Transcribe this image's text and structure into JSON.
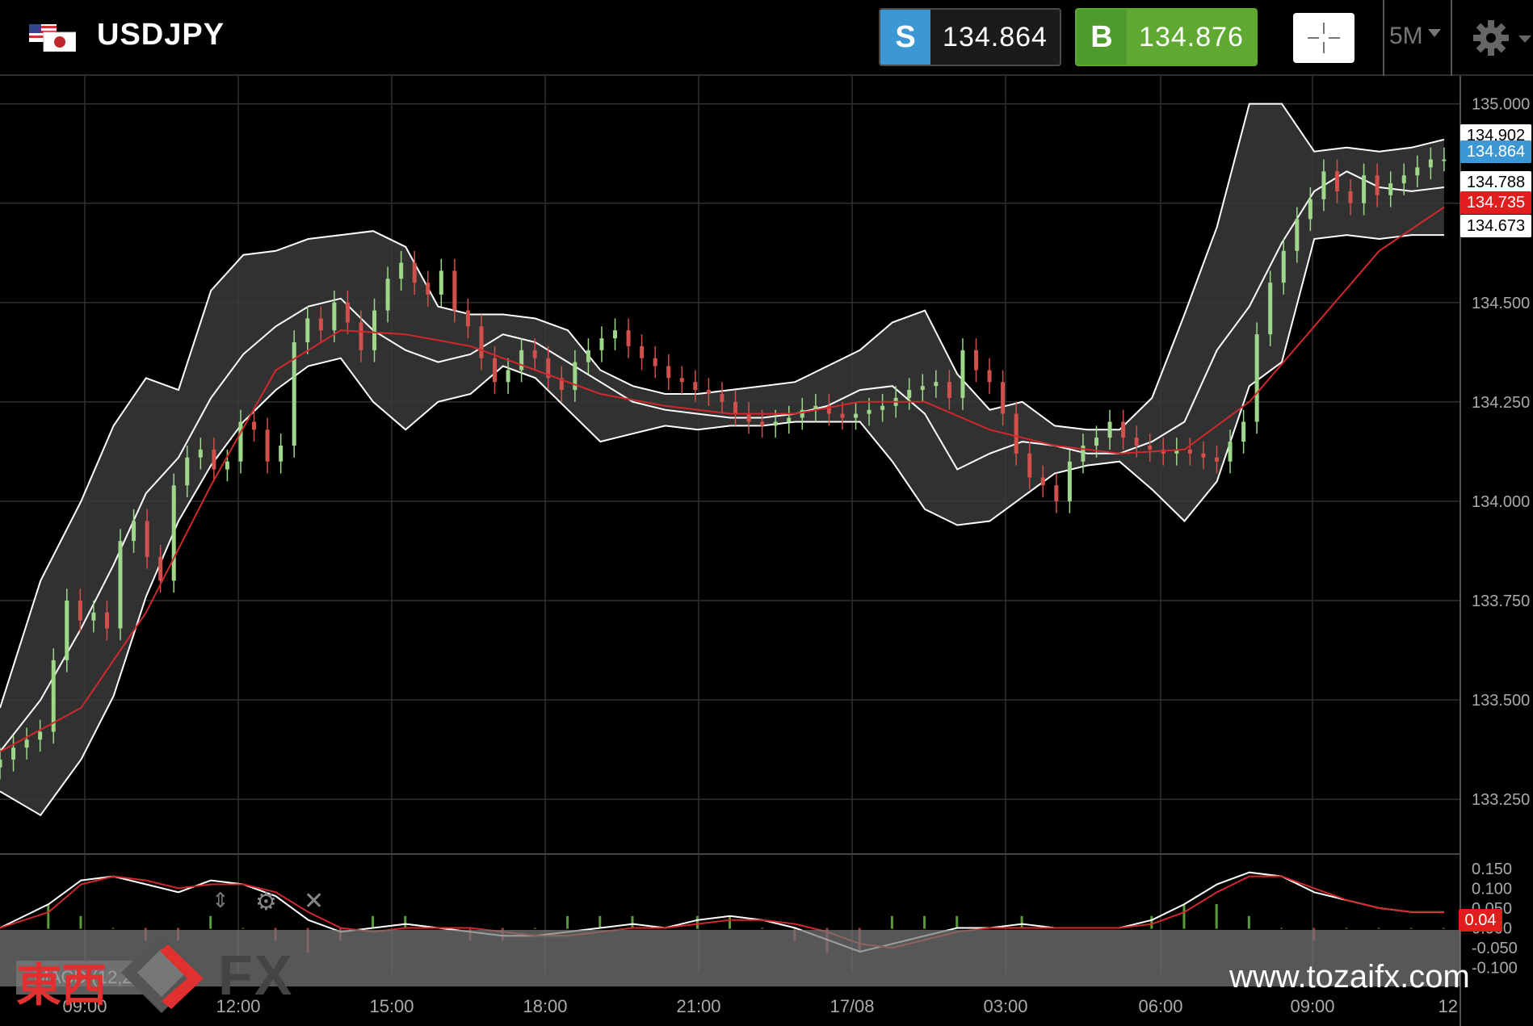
{
  "header": {
    "symbol": "USDJPY",
    "sell": {
      "label": "S",
      "price": "134.864"
    },
    "buy": {
      "label": "B",
      "price": "134.876"
    },
    "timeframe": "5M"
  },
  "price_tags": [
    {
      "text": "134.902",
      "kind": "upper",
      "value": 134.902
    },
    {
      "text": "134.864",
      "kind": "bid",
      "value": 134.864
    },
    {
      "text": "134.788",
      "kind": "middle",
      "value": 134.788
    },
    {
      "text": "134.735",
      "kind": "ma",
      "value": 134.735
    },
    {
      "text": "134.673",
      "kind": "lower",
      "value": 134.673
    }
  ],
  "macd_label": "MACD (12,26,9)",
  "macd_value_tag": "0.04",
  "watermark": {
    "brand_kanji": "東西",
    "brand_fx": "FX",
    "url": "www.tozaifx.com"
  },
  "colors": {
    "sell": "#3b98d4",
    "buy": "#5fa832",
    "ma_line": "#d0282c",
    "up_candle": "#9ed68a",
    "down_candle": "#d0514c"
  },
  "chart_data": {
    "type": "candlestick",
    "ylim": [
      133.1,
      135.05
    ],
    "y_ticks": [
      "135.000",
      "134.750",
      "134.500",
      "134.250",
      "134.000",
      "133.750",
      "133.500",
      "133.250"
    ],
    "y_tick_values": [
      135.0,
      134.75,
      134.5,
      134.25,
      134.0,
      133.75,
      133.5,
      133.25
    ],
    "x_ticks": [
      "09:00",
      "12:00",
      "15:00",
      "18:00",
      "21:00",
      "17/08",
      "03:00",
      "06:00",
      "09:00",
      "12"
    ],
    "macd_ticks": [
      "0.150",
      "0.100",
      "0.050",
      "0.000",
      "-0.050",
      "-0.100"
    ],
    "macd_tick_values": [
      0.15,
      0.1,
      0.05,
      0.0,
      -0.05,
      -0.1
    ],
    "macd_ylim": [
      -0.115,
      0.17
    ],
    "middle_band": [
      [
        0,
        133.37
      ],
      [
        5,
        133.5
      ],
      [
        10,
        133.68
      ],
      [
        14,
        133.84
      ],
      [
        18,
        134.02
      ],
      [
        22,
        134.11
      ],
      [
        26,
        134.26
      ],
      [
        30,
        134.37
      ],
      [
        34,
        134.44
      ],
      [
        38,
        134.49
      ],
      [
        42,
        134.51
      ],
      [
        46,
        134.43
      ],
      [
        50,
        134.38
      ],
      [
        54,
        134.35
      ],
      [
        58,
        134.37
      ],
      [
        62,
        134.42
      ],
      [
        66,
        134.4
      ],
      [
        70,
        134.35
      ],
      [
        74,
        134.3
      ],
      [
        78,
        134.25
      ],
      [
        82,
        134.23
      ],
      [
        86,
        134.22
      ],
      [
        90,
        134.21
      ],
      [
        94,
        134.21
      ],
      [
        98,
        134.22
      ],
      [
        102,
        134.24
      ],
      [
        106,
        134.28
      ],
      [
        110,
        134.29
      ],
      [
        114,
        134.22
      ],
      [
        118,
        134.08
      ],
      [
        122,
        134.12
      ],
      [
        126,
        134.15
      ],
      [
        130,
        134.14
      ],
      [
        134,
        134.12
      ],
      [
        138,
        134.12
      ],
      [
        142,
        134.15
      ],
      [
        146,
        134.2
      ],
      [
        150,
        134.38
      ],
      [
        154,
        134.49
      ],
      [
        158,
        134.65
      ],
      [
        162,
        134.78
      ],
      [
        166,
        134.83
      ],
      [
        170,
        134.79
      ],
      [
        174,
        134.78
      ],
      [
        178,
        134.79
      ]
    ],
    "upper_band": [
      [
        0,
        133.48
      ],
      [
        5,
        133.8
      ],
      [
        10,
        134.0
      ],
      [
        14,
        134.19
      ],
      [
        18,
        134.31
      ],
      [
        22,
        134.28
      ],
      [
        26,
        134.53
      ],
      [
        30,
        134.62
      ],
      [
        34,
        134.63
      ],
      [
        38,
        134.66
      ],
      [
        42,
        134.67
      ],
      [
        46,
        134.68
      ],
      [
        50,
        134.64
      ],
      [
        54,
        134.49
      ],
      [
        58,
        134.47
      ],
      [
        62,
        134.47
      ],
      [
        66,
        134.46
      ],
      [
        70,
        134.43
      ],
      [
        74,
        134.33
      ],
      [
        78,
        134.29
      ],
      [
        82,
        134.27
      ],
      [
        86,
        134.27
      ],
      [
        90,
        134.28
      ],
      [
        94,
        134.29
      ],
      [
        98,
        134.3
      ],
      [
        102,
        134.34
      ],
      [
        106,
        134.38
      ],
      [
        110,
        134.45
      ],
      [
        114,
        134.48
      ],
      [
        118,
        134.32
      ],
      [
        122,
        134.23
      ],
      [
        126,
        134.25
      ],
      [
        130,
        134.19
      ],
      [
        134,
        134.18
      ],
      [
        138,
        134.18
      ],
      [
        142,
        134.26
      ],
      [
        146,
        134.47
      ],
      [
        150,
        134.69
      ],
      [
        154,
        135.0
      ],
      [
        158,
        135.0
      ],
      [
        162,
        134.88
      ],
      [
        166,
        134.89
      ],
      [
        170,
        134.88
      ],
      [
        174,
        134.89
      ],
      [
        178,
        134.91
      ]
    ],
    "lower_band": [
      [
        0,
        133.27
      ],
      [
        5,
        133.21
      ],
      [
        10,
        133.35
      ],
      [
        14,
        133.51
      ],
      [
        18,
        133.76
      ],
      [
        22,
        133.95
      ],
      [
        26,
        134.09
      ],
      [
        30,
        134.2
      ],
      [
        34,
        134.28
      ],
      [
        38,
        134.34
      ],
      [
        42,
        134.36
      ],
      [
        46,
        134.25
      ],
      [
        50,
        134.18
      ],
      [
        54,
        134.25
      ],
      [
        58,
        134.27
      ],
      [
        62,
        134.34
      ],
      [
        66,
        134.31
      ],
      [
        70,
        134.23
      ],
      [
        74,
        134.15
      ],
      [
        78,
        134.17
      ],
      [
        82,
        134.19
      ],
      [
        86,
        134.18
      ],
      [
        90,
        134.19
      ],
      [
        94,
        134.19
      ],
      [
        98,
        134.2
      ],
      [
        102,
        134.2
      ],
      [
        106,
        134.2
      ],
      [
        110,
        134.1
      ],
      [
        114,
        133.98
      ],
      [
        118,
        133.94
      ],
      [
        122,
        133.95
      ],
      [
        126,
        134.01
      ],
      [
        130,
        134.07
      ],
      [
        134,
        134.09
      ],
      [
        138,
        134.1
      ],
      [
        142,
        134.03
      ],
      [
        146,
        133.95
      ],
      [
        150,
        134.05
      ],
      [
        154,
        134.29
      ],
      [
        158,
        134.35
      ],
      [
        162,
        134.66
      ],
      [
        166,
        134.67
      ],
      [
        170,
        134.66
      ],
      [
        174,
        134.67
      ],
      [
        178,
        134.67
      ]
    ],
    "ma_line": [
      [
        0,
        133.37
      ],
      [
        10,
        133.48
      ],
      [
        18,
        133.72
      ],
      [
        26,
        134.04
      ],
      [
        34,
        134.33
      ],
      [
        42,
        134.43
      ],
      [
        50,
        134.42
      ],
      [
        58,
        134.39
      ],
      [
        66,
        134.33
      ],
      [
        74,
        134.27
      ],
      [
        82,
        134.24
      ],
      [
        90,
        134.22
      ],
      [
        98,
        134.22
      ],
      [
        106,
        134.25
      ],
      [
        114,
        134.25
      ],
      [
        122,
        134.18
      ],
      [
        130,
        134.14
      ],
      [
        138,
        134.12
      ],
      [
        146,
        134.13
      ],
      [
        154,
        134.25
      ],
      [
        162,
        134.44
      ],
      [
        170,
        134.63
      ],
      [
        178,
        134.74
      ]
    ],
    "candles_close": [
      133.35,
      133.38,
      133.4,
      133.42,
      133.6,
      133.75,
      133.7,
      133.72,
      133.68,
      133.9,
      133.95,
      133.86,
      133.8,
      134.04,
      134.11,
      134.13,
      134.08,
      134.1,
      134.2,
      134.18,
      134.1,
      134.14,
      134.4,
      134.46,
      134.43,
      134.5,
      134.45,
      134.38,
      134.48,
      134.56,
      134.6,
      134.55,
      134.52,
      134.58,
      134.48,
      134.44,
      134.36,
      134.3,
      134.33,
      134.38,
      134.36,
      134.31,
      134.28,
      134.35,
      134.38,
      134.41,
      134.43,
      134.39,
      134.36,
      134.34,
      134.31,
      134.3,
      134.28,
      134.27,
      134.25,
      134.22,
      134.2,
      134.19,
      134.2,
      134.21,
      134.23,
      134.24,
      134.22,
      134.21,
      134.22,
      134.23,
      134.24,
      134.26,
      134.28,
      134.29,
      134.3,
      134.26,
      134.38,
      134.33,
      134.3,
      134.22,
      134.12,
      134.06,
      134.04,
      134.0,
      134.1,
      134.14,
      134.16,
      134.2,
      134.16,
      134.14,
      134.13,
      134.12,
      134.13,
      134.12,
      134.11,
      134.1,
      134.15,
      134.2,
      134.42,
      134.55,
      134.63,
      134.71,
      134.76,
      134.83,
      134.78,
      134.75,
      134.82,
      134.77,
      134.8,
      134.82,
      134.84,
      134.86,
      134.86
    ],
    "macd": [
      [
        0,
        0.0
      ],
      [
        6,
        0.06
      ],
      [
        10,
        0.12
      ],
      [
        14,
        0.13
      ],
      [
        18,
        0.11
      ],
      [
        22,
        0.09
      ],
      [
        26,
        0.12
      ],
      [
        30,
        0.11
      ],
      [
        34,
        0.08
      ],
      [
        38,
        0.02
      ],
      [
        42,
        -0.01
      ],
      [
        46,
        0.0
      ],
      [
        50,
        0.01
      ],
      [
        54,
        0.0
      ],
      [
        58,
        -0.01
      ],
      [
        62,
        -0.02
      ],
      [
        66,
        -0.02
      ],
      [
        70,
        -0.01
      ],
      [
        74,
        0.0
      ],
      [
        78,
        0.01
      ],
      [
        82,
        0.0
      ],
      [
        86,
        0.02
      ],
      [
        90,
        0.03
      ],
      [
        94,
        0.02
      ],
      [
        98,
        0.0
      ],
      [
        102,
        -0.03
      ],
      [
        106,
        -0.06
      ],
      [
        110,
        -0.04
      ],
      [
        114,
        -0.02
      ],
      [
        118,
        0.0
      ],
      [
        122,
        0.0
      ],
      [
        126,
        0.01
      ],
      [
        130,
        0.0
      ],
      [
        134,
        0.0
      ],
      [
        138,
        0.0
      ],
      [
        142,
        0.02
      ],
      [
        146,
        0.06
      ],
      [
        150,
        0.11
      ],
      [
        154,
        0.14
      ],
      [
        158,
        0.13
      ],
      [
        162,
        0.09
      ],
      [
        166,
        0.07
      ],
      [
        170,
        0.05
      ],
      [
        174,
        0.04
      ],
      [
        178,
        0.04
      ]
    ],
    "signal": [
      [
        0,
        0.0
      ],
      [
        6,
        0.04
      ],
      [
        10,
        0.11
      ],
      [
        14,
        0.13
      ],
      [
        18,
        0.12
      ],
      [
        22,
        0.1
      ],
      [
        26,
        0.11
      ],
      [
        30,
        0.11
      ],
      [
        34,
        0.09
      ],
      [
        38,
        0.04
      ],
      [
        42,
        0.0
      ],
      [
        46,
        -0.01
      ],
      [
        50,
        0.0
      ],
      [
        54,
        0.0
      ],
      [
        58,
        0.0
      ],
      [
        62,
        -0.01
      ],
      [
        66,
        -0.02
      ],
      [
        70,
        -0.02
      ],
      [
        74,
        -0.01
      ],
      [
        78,
        0.0
      ],
      [
        82,
        0.0
      ],
      [
        86,
        0.01
      ],
      [
        90,
        0.02
      ],
      [
        94,
        0.02
      ],
      [
        98,
        0.01
      ],
      [
        102,
        -0.01
      ],
      [
        106,
        -0.04
      ],
      [
        110,
        -0.05
      ],
      [
        114,
        -0.03
      ],
      [
        118,
        -0.01
      ],
      [
        122,
        0.0
      ],
      [
        126,
        0.0
      ],
      [
        130,
        0.0
      ],
      [
        134,
        0.0
      ],
      [
        138,
        0.0
      ],
      [
        142,
        0.01
      ],
      [
        146,
        0.04
      ],
      [
        150,
        0.09
      ],
      [
        154,
        0.13
      ],
      [
        158,
        0.13
      ],
      [
        162,
        0.1
      ],
      [
        166,
        0.07
      ],
      [
        170,
        0.05
      ],
      [
        174,
        0.04
      ],
      [
        178,
        0.04
      ]
    ]
  }
}
